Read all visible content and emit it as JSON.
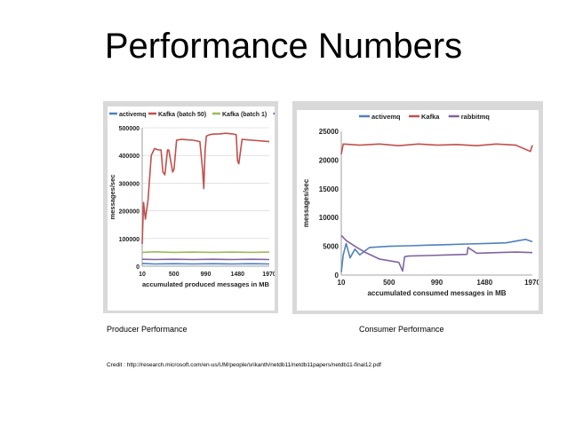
{
  "slide": {
    "title": "Performance Numbers",
    "caption_left": "Producer Performance",
    "caption_right": "Consumer Performance",
    "credit": "Credit : http://research.microsoft.com/en-us/UM/people/srikanth/netdb11/netdb11papers/netdb11-final12.pdf"
  },
  "chart_data": [
    {
      "type": "line",
      "title": "",
      "xlabel": "accumulated produced messages in MB",
      "ylabel": "messages/sec",
      "xlim": [
        10,
        1970
      ],
      "ylim": [
        0,
        500000
      ],
      "x_ticks": [
        "10",
        "500",
        "990",
        "1480",
        "1970"
      ],
      "y_ticks": [
        "0",
        "100000",
        "200000",
        "300000",
        "400000",
        "500000"
      ],
      "grid": true,
      "legend": "top",
      "series": [
        {
          "name": "activemq",
          "color": "#4f81bd",
          "x": [
            10,
            200,
            500,
            800,
            1100,
            1400,
            1700,
            1970
          ],
          "y": [
            10000,
            8000,
            9000,
            8000,
            9000,
            8000,
            9000,
            8000
          ]
        },
        {
          "name": "Kafka (batch 50)",
          "color": "#c0504d",
          "x": [
            10,
            30,
            60,
            100,
            150,
            200,
            260,
            300,
            330,
            360,
            400,
            420,
            480,
            500,
            540,
            580,
            620,
            680,
            800,
            900,
            940,
            960,
            980,
            1000,
            1050,
            1100,
            1200,
            1300,
            1400,
            1460,
            1480,
            1500,
            1550,
            1700,
            1970
          ],
          "y": [
            80000,
            230000,
            170000,
            240000,
            400000,
            425000,
            420000,
            420000,
            340000,
            330000,
            420000,
            420000,
            340000,
            350000,
            455000,
            457000,
            458000,
            457000,
            455000,
            450000,
            350000,
            280000,
            420000,
            470000,
            475000,
            477000,
            478000,
            480000,
            478000,
            475000,
            380000,
            370000,
            458000,
            455000,
            450000
          ]
        },
        {
          "name": "Kafka (batch 1)",
          "color": "#9bbb59",
          "x": [
            10,
            200,
            500,
            800,
            1100,
            1400,
            1700,
            1970
          ],
          "y": [
            50000,
            52000,
            50000,
            51000,
            50000,
            51000,
            50000,
            51000
          ]
        },
        {
          "name": "rabbitmq",
          "color": "#8064a2",
          "x": [
            10,
            200,
            500,
            800,
            1100,
            1400,
            1700,
            1970
          ],
          "y": [
            25000,
            24000,
            25000,
            24000,
            25000,
            24000,
            25000,
            24000
          ]
        }
      ]
    },
    {
      "type": "line",
      "title": "",
      "xlabel": "accumulated consumed messages in MB",
      "ylabel": "messages/sec",
      "xlim": [
        10,
        1970
      ],
      "ylim": [
        0,
        25000
      ],
      "x_ticks": [
        "10",
        "500",
        "990",
        "1480",
        "1970"
      ],
      "y_ticks": [
        "0",
        "5000",
        "10000",
        "15000",
        "20000",
        "25000"
      ],
      "grid": false,
      "legend": "top",
      "series": [
        {
          "name": "activemq",
          "color": "#4f81bd",
          "x": [
            10,
            30,
            60,
            100,
            150,
            200,
            300,
            500,
            700,
            900,
            1100,
            1300,
            1500,
            1700,
            1900,
            1970
          ],
          "y": [
            500,
            3500,
            5500,
            3000,
            4500,
            3500,
            4800,
            5000,
            5100,
            5200,
            5300,
            5400,
            5500,
            5600,
            6200,
            5800
          ]
        },
        {
          "name": "Kafka",
          "color": "#c0504d",
          "x": [
            10,
            30,
            200,
            400,
            600,
            800,
            1000,
            1200,
            1400,
            1600,
            1800,
            1950,
            1970
          ],
          "y": [
            21000,
            22800,
            22600,
            22800,
            22500,
            22800,
            22600,
            22700,
            22500,
            22800,
            22600,
            21500,
            22600
          ]
        },
        {
          "name": "rabbitmq",
          "color": "#8064a2",
          "x": [
            10,
            60,
            150,
            250,
            400,
            600,
            640,
            660,
            700,
            900,
            1100,
            1300,
            1310,
            1400,
            1600,
            1800,
            1970
          ],
          "y": [
            6900,
            6000,
            5000,
            4000,
            2800,
            2200,
            700,
            3200,
            3300,
            3400,
            3500,
            3600,
            4800,
            3800,
            3900,
            4000,
            3900
          ]
        }
      ]
    }
  ]
}
